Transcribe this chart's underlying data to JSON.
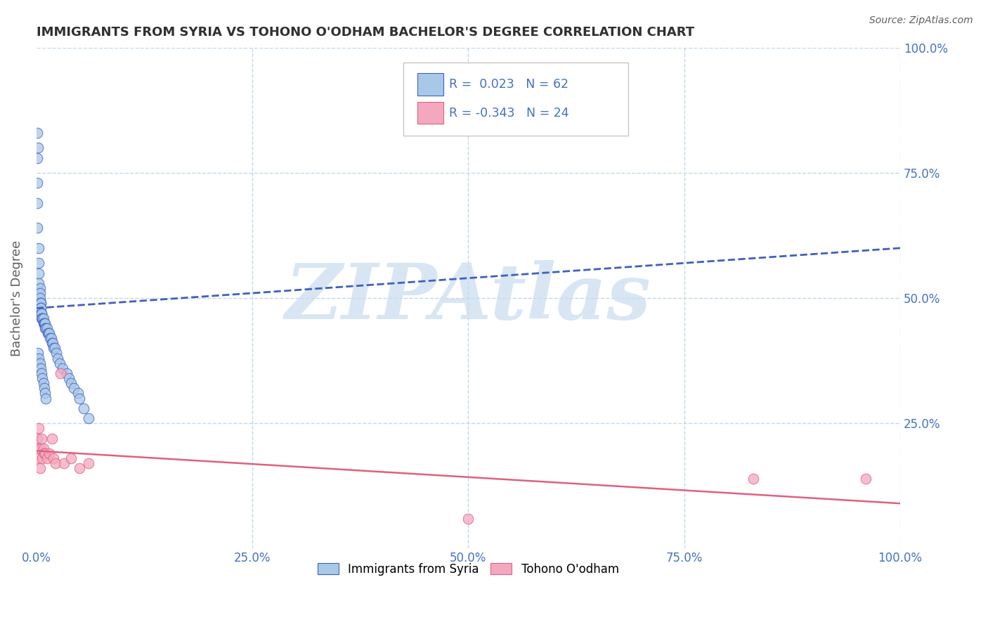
{
  "title": "IMMIGRANTS FROM SYRIA VS TOHONO O'ODHAM BACHELOR'S DEGREE CORRELATION CHART",
  "source": "Source: ZipAtlas.com",
  "ylabel": "Bachelor's Degree",
  "xlim": [
    0.0,
    1.0
  ],
  "ylim": [
    0.0,
    1.0
  ],
  "xticks": [
    0.0,
    0.25,
    0.5,
    0.75,
    1.0
  ],
  "yticks": [
    0.25,
    0.5,
    0.75,
    1.0
  ],
  "xtick_labels": [
    "0.0%",
    "25.0%",
    "50.0%",
    "75.0%",
    "100.0%"
  ],
  "ytick_labels_right": [
    "25.0%",
    "50.0%",
    "75.0%",
    "100.0%"
  ],
  "legend_entry1": "Immigrants from Syria",
  "legend_entry2": "Tohono O'odham",
  "R1": 0.023,
  "N1": 62,
  "R2": -0.343,
  "N2": 24,
  "color1": "#A8C8E8",
  "color2": "#F4A8C0",
  "trendline1_color": "#4060C0",
  "trendline2_color": "#E06080",
  "background_color": "#FFFFFF",
  "grid_color": "#C0D8EC",
  "watermark": "ZIPAtlas",
  "watermark_color": "#C8DCF0",
  "title_color": "#303030",
  "source_color": "#606060",
  "tick_color": "#4472C4",
  "ylabel_color": "#606060",
  "trendline1_start_y": 0.48,
  "trendline1_end_y": 0.6,
  "trendline2_start_y": 0.195,
  "trendline2_end_y": 0.09,
  "syria_x": [
    0.001,
    0.002,
    0.001,
    0.001,
    0.001,
    0.001,
    0.003,
    0.003,
    0.003,
    0.003,
    0.004,
    0.004,
    0.004,
    0.004,
    0.005,
    0.005,
    0.005,
    0.005,
    0.006,
    0.006,
    0.006,
    0.007,
    0.007,
    0.008,
    0.008,
    0.009,
    0.009,
    0.01,
    0.01,
    0.011,
    0.012,
    0.013,
    0.014,
    0.015,
    0.016,
    0.017,
    0.018,
    0.019,
    0.02,
    0.021,
    0.023,
    0.025,
    0.027,
    0.03,
    0.035,
    0.038,
    0.04,
    0.043,
    0.048,
    0.05,
    0.055,
    0.06,
    0.002,
    0.003,
    0.004,
    0.005,
    0.006,
    0.007,
    0.008,
    0.009,
    0.01,
    0.011
  ],
  "syria_y": [
    0.83,
    0.8,
    0.78,
    0.73,
    0.69,
    0.64,
    0.6,
    0.57,
    0.55,
    0.53,
    0.52,
    0.51,
    0.5,
    0.49,
    0.49,
    0.49,
    0.48,
    0.48,
    0.47,
    0.47,
    0.46,
    0.46,
    0.46,
    0.46,
    0.45,
    0.45,
    0.45,
    0.45,
    0.44,
    0.44,
    0.44,
    0.43,
    0.43,
    0.43,
    0.42,
    0.42,
    0.41,
    0.41,
    0.4,
    0.4,
    0.39,
    0.38,
    0.37,
    0.36,
    0.35,
    0.34,
    0.33,
    0.32,
    0.31,
    0.3,
    0.28,
    0.26,
    0.39,
    0.38,
    0.37,
    0.36,
    0.35,
    0.34,
    0.33,
    0.32,
    0.31,
    0.3
  ],
  "tohono_x": [
    0.001,
    0.001,
    0.002,
    0.003,
    0.004,
    0.005,
    0.006,
    0.007,
    0.008,
    0.009,
    0.01,
    0.012,
    0.015,
    0.018,
    0.02,
    0.022,
    0.028,
    0.032,
    0.04,
    0.05,
    0.06,
    0.5,
    0.83,
    0.96
  ],
  "tohono_y": [
    0.22,
    0.18,
    0.2,
    0.24,
    0.16,
    0.2,
    0.22,
    0.18,
    0.2,
    0.19,
    0.19,
    0.18,
    0.19,
    0.22,
    0.18,
    0.17,
    0.35,
    0.17,
    0.18,
    0.16,
    0.17,
    0.06,
    0.14,
    0.14
  ]
}
